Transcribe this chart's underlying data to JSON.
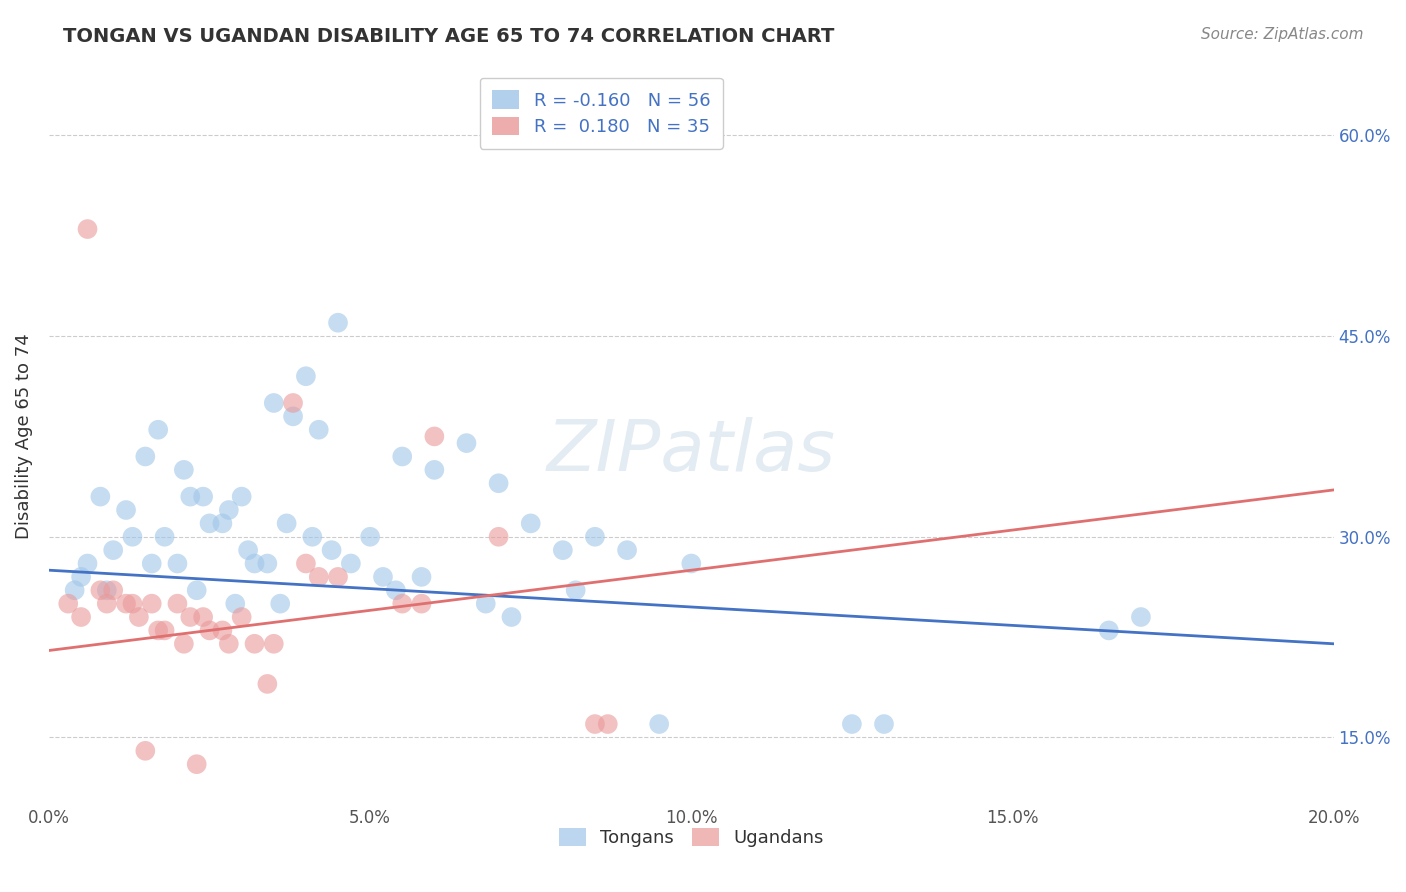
{
  "title": "TONGAN VS UGANDAN DISABILITY AGE 65 TO 74 CORRELATION CHART",
  "source": "Source: ZipAtlas.com",
  "xlabel_vals": [
    0.0,
    5.0,
    10.0,
    15.0,
    20.0
  ],
  "ylabel_vals": [
    15.0,
    30.0,
    45.0,
    60.0
  ],
  "xlim": [
    0.0,
    20.0
  ],
  "ylim": [
    10.0,
    65.0
  ],
  "ylabel": "Disability Age 65 to 74",
  "tongan_line_color": "#4472c4",
  "ugandan_line_color": "#e07070",
  "tongan_dot_color": "#9fc5e8",
  "ugandan_dot_color": "#ea9999",
  "tongan_R": -0.16,
  "tongan_N": 56,
  "ugandan_R": 0.18,
  "ugandan_N": 35,
  "watermark": "ZIPatlas",
  "background_color": "#ffffff",
  "grid_color": "#cccccc",
  "tongan_line_x0": 0.0,
  "tongan_line_y0": 27.5,
  "tongan_line_x1": 20.0,
  "tongan_line_y1": 22.0,
  "ugandan_line_x0": 0.0,
  "ugandan_line_y0": 21.5,
  "ugandan_line_x1": 20.0,
  "ugandan_line_y1": 33.5,
  "tongan_scatter_x": [
    0.5,
    1.0,
    1.2,
    1.5,
    1.8,
    2.0,
    2.2,
    2.5,
    2.8,
    3.0,
    3.2,
    3.5,
    3.8,
    4.0,
    4.2,
    4.5,
    1.7,
    2.1,
    2.4,
    2.7,
    3.1,
    3.4,
    3.7,
    4.1,
    4.4,
    4.7,
    5.0,
    5.5,
    6.0,
    6.5,
    7.0,
    7.5,
    8.0,
    8.5,
    9.0,
    10.0,
    0.8,
    1.3,
    0.6,
    0.4,
    0.9,
    1.6,
    2.3,
    2.9,
    3.6,
    5.8,
    6.8,
    7.2,
    8.2,
    9.5,
    12.5,
    13.0,
    16.5,
    17.0,
    5.2,
    5.4
  ],
  "tongan_scatter_y": [
    27.0,
    29.0,
    32.0,
    36.0,
    30.0,
    28.0,
    33.0,
    31.0,
    32.0,
    33.0,
    28.0,
    40.0,
    39.0,
    42.0,
    38.0,
    46.0,
    38.0,
    35.0,
    33.0,
    31.0,
    29.0,
    28.0,
    31.0,
    30.0,
    29.0,
    28.0,
    30.0,
    36.0,
    35.0,
    37.0,
    34.0,
    31.0,
    29.0,
    30.0,
    29.0,
    28.0,
    33.0,
    30.0,
    28.0,
    26.0,
    26.0,
    28.0,
    26.0,
    25.0,
    25.0,
    27.0,
    25.0,
    24.0,
    26.0,
    16.0,
    16.0,
    16.0,
    23.0,
    24.0,
    27.0,
    26.0
  ],
  "ugandan_scatter_x": [
    0.3,
    0.5,
    0.8,
    1.0,
    1.2,
    1.4,
    1.6,
    1.8,
    2.0,
    2.2,
    2.4,
    2.5,
    2.7,
    3.0,
    3.2,
    3.5,
    0.6,
    0.9,
    1.3,
    1.7,
    2.1,
    2.8,
    3.8,
    4.0,
    4.5,
    5.5,
    7.0,
    8.5,
    8.7,
    1.5,
    2.3,
    3.4,
    4.2,
    5.8,
    6.0
  ],
  "ugandan_scatter_y": [
    25.0,
    24.0,
    26.0,
    26.0,
    25.0,
    24.0,
    25.0,
    23.0,
    25.0,
    24.0,
    24.0,
    23.0,
    23.0,
    24.0,
    22.0,
    22.0,
    53.0,
    25.0,
    25.0,
    23.0,
    22.0,
    22.0,
    40.0,
    28.0,
    27.0,
    25.0,
    30.0,
    16.0,
    16.0,
    14.0,
    13.0,
    19.0,
    27.0,
    25.0,
    37.5
  ]
}
